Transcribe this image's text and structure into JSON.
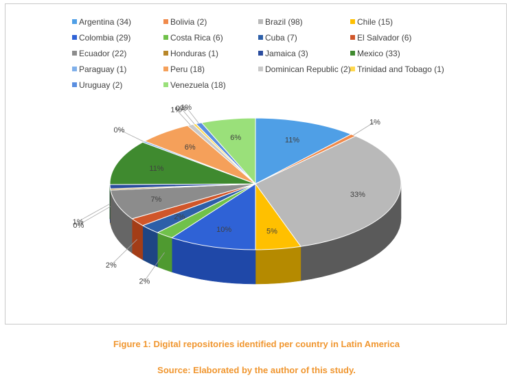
{
  "chart_data": {
    "type": "pie",
    "style": "3d",
    "legend_position": "top",
    "slices": [
      {
        "label": "Argentina (34)",
        "value": 34,
        "pct": "11%",
        "color": "#4f9fe6",
        "side": "#3a7dbf"
      },
      {
        "label": "Bolivia (2)",
        "value": 2,
        "pct": "1%",
        "color": "#f08a4b",
        "side": "#c2652a"
      },
      {
        "label": "Brazil (98)",
        "value": 98,
        "pct": "33%",
        "color": "#b9b9b9",
        "side": "#5a5a5a"
      },
      {
        "label": "Chile (15)",
        "value": 15,
        "pct": "5%",
        "color": "#ffc000",
        "side": "#b58a00"
      },
      {
        "label": "Colombia (29)",
        "value": 29,
        "pct": "10%",
        "color": "#2f62d6",
        "side": "#1f48a8"
      },
      {
        "label": "Costa Rica (6)",
        "value": 6,
        "pct": "2%",
        "color": "#70c14a",
        "side": "#4f9a30"
      },
      {
        "label": "Cuba (7)",
        "value": 7,
        "pct": "2%",
        "color": "#2d5fa8",
        "side": "#1e4584"
      },
      {
        "label": "El Salvador (6)",
        "value": 6,
        "pct": "2%",
        "color": "#d0562a",
        "side": "#a33d17"
      },
      {
        "label": "Ecuador (22)",
        "value": 22,
        "pct": "7%",
        "color": "#8c8c8c",
        "side": "#666666"
      },
      {
        "label": "Honduras (1)",
        "value": 1,
        "pct": "0%",
        "color": "#b8872a",
        "side": "#8a6419"
      },
      {
        "label": "Jamaica (3)",
        "value": 3,
        "pct": "1%",
        "color": "#2a4c9e",
        "side": "#1c3677"
      },
      {
        "label": "Mexico (33)",
        "value": 33,
        "pct": "11%",
        "color": "#3f8a2f",
        "side": "#2a6620"
      },
      {
        "label": "Paraguay (1)",
        "value": 1,
        "pct": "0%",
        "color": "#80b0ea",
        "side": "#5c8ac4"
      },
      {
        "label": "Peru (18)",
        "value": 18,
        "pct": "6%",
        "color": "#f5a05a",
        "side": "#c9773a"
      },
      {
        "label": "Dominican Republic (2)",
        "value": 2,
        "pct": "1%",
        "color": "#c9c9c9",
        "side": "#9a9a9a"
      },
      {
        "label": "Trinidad and Tobago (1)",
        "value": 1,
        "pct": "0%",
        "color": "#ffd84d",
        "side": "#c4a52a"
      },
      {
        "label": "Uruguay (2)",
        "value": 2,
        "pct": "1%",
        "color": "#5a8ee0",
        "side": "#3e6cb8"
      },
      {
        "label": "Venezuela (18)",
        "value": 18,
        "pct": "6%",
        "color": "#9ae07a",
        "side": "#73b556"
      }
    ]
  },
  "captions": {
    "figure": "Figure 1: Digital repositories identified per country in Latin America",
    "source": "Source: Elaborated by the author of this study."
  }
}
